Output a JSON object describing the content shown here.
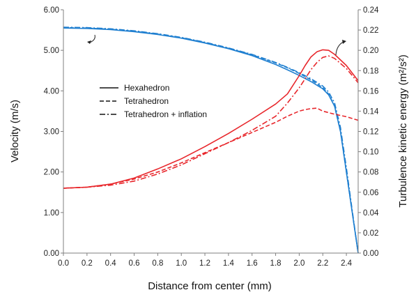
{
  "chart_data": {
    "type": "line",
    "xlabel": "Distance from center (mm)",
    "ylabel": "Velocity (m/s)",
    "y2label": "Turbulence kinetic energy (m²/s²)",
    "xlim": [
      0,
      2.5
    ],
    "ylim": [
      0,
      6
    ],
    "y2lim": [
      0,
      0.24
    ],
    "x_ticks": [
      "0.0",
      "0.2",
      "0.4",
      "0.6",
      "0.8",
      "1.0",
      "1.2",
      "1.4",
      "1.6",
      "1.8",
      "2.0",
      "2.2",
      "2.4"
    ],
    "y_ticks": [
      "0.00",
      "1.00",
      "2.00",
      "3.00",
      "4.00",
      "5.00",
      "6.00"
    ],
    "y2_ticks": [
      "0.00",
      "0.02",
      "0.04",
      "0.06",
      "0.08",
      "0.10",
      "0.12",
      "0.14",
      "0.16",
      "0.18",
      "0.20",
      "0.22",
      "0.24"
    ],
    "grid": false,
    "legend_position": "center-left",
    "legend": [
      "Hexahedron",
      "Tetrahedron",
      "Tetrahedron + inflation"
    ],
    "colors": {
      "velocity": "#1f7fd0",
      "tke": "#e8262b"
    },
    "series": [
      {
        "name": "Hexahedron",
        "quantity": "velocity",
        "axis": "left",
        "style": "solid",
        "x": [
          0,
          0.2,
          0.4,
          0.6,
          0.8,
          1.0,
          1.2,
          1.4,
          1.6,
          1.8,
          1.9,
          2.0,
          2.1,
          2.2,
          2.25,
          2.3,
          2.35,
          2.4,
          2.45,
          2.5
        ],
        "y": [
          5.55,
          5.54,
          5.51,
          5.46,
          5.39,
          5.3,
          5.18,
          5.04,
          4.87,
          4.65,
          4.52,
          4.38,
          4.23,
          4.05,
          3.9,
          3.62,
          3.0,
          2.0,
          1.0,
          0.0
        ]
      },
      {
        "name": "Tetrahedron",
        "quantity": "velocity",
        "axis": "left",
        "style": "dashed",
        "x": [
          0,
          0.2,
          0.4,
          0.6,
          0.8,
          1.0,
          1.2,
          1.4,
          1.6,
          1.8,
          1.9,
          2.0,
          2.1,
          2.2,
          2.25,
          2.3,
          2.35,
          2.4,
          2.45,
          2.5
        ],
        "y": [
          5.56,
          5.55,
          5.52,
          5.47,
          5.4,
          5.31,
          5.19,
          5.05,
          4.89,
          4.69,
          4.57,
          4.43,
          4.27,
          4.08,
          3.92,
          3.62,
          3.0,
          2.0,
          1.0,
          0.0
        ]
      },
      {
        "name": "Tetrahedron + inflation",
        "quantity": "velocity",
        "axis": "left",
        "style": "dashdot",
        "x": [
          0,
          0.2,
          0.4,
          0.6,
          0.8,
          1.0,
          1.2,
          1.4,
          1.6,
          1.8,
          1.9,
          2.0,
          2.1,
          2.2,
          2.25,
          2.3,
          2.35,
          2.4,
          2.45,
          2.5
        ],
        "y": [
          5.57,
          5.56,
          5.53,
          5.48,
          5.41,
          5.32,
          5.2,
          5.06,
          4.9,
          4.7,
          4.58,
          4.45,
          4.3,
          4.12,
          3.97,
          3.7,
          3.1,
          2.1,
          1.05,
          0.0
        ]
      },
      {
        "name": "Hexahedron",
        "quantity": "tke",
        "axis": "right",
        "style": "solid",
        "x": [
          0,
          0.2,
          0.4,
          0.6,
          0.8,
          1.0,
          1.2,
          1.4,
          1.6,
          1.8,
          1.9,
          2.0,
          2.05,
          2.1,
          2.15,
          2.2,
          2.25,
          2.3,
          2.4,
          2.5
        ],
        "y": [
          0.064,
          0.065,
          0.068,
          0.074,
          0.083,
          0.093,
          0.105,
          0.118,
          0.132,
          0.147,
          0.157,
          0.175,
          0.185,
          0.1935,
          0.1985,
          0.2005,
          0.2,
          0.196,
          0.185,
          0.17
        ]
      },
      {
        "name": "Tetrahedron",
        "quantity": "tke",
        "axis": "right",
        "style": "dashed",
        "x": [
          0,
          0.2,
          0.4,
          0.6,
          0.8,
          1.0,
          1.2,
          1.4,
          1.6,
          1.8,
          1.9,
          2.0,
          2.05,
          2.1,
          2.15,
          2.2,
          2.3,
          2.4,
          2.5
        ],
        "y": [
          0.064,
          0.065,
          0.068,
          0.073,
          0.08,
          0.089,
          0.099,
          0.109,
          0.119,
          0.129,
          0.135,
          0.14,
          0.1415,
          0.1425,
          0.143,
          0.14,
          0.137,
          0.1345,
          0.131
        ]
      },
      {
        "name": "Tetrahedron + inflation",
        "quantity": "tke",
        "axis": "right",
        "style": "dashdot",
        "x": [
          0,
          0.2,
          0.4,
          0.6,
          0.8,
          1.0,
          1.2,
          1.4,
          1.6,
          1.8,
          1.9,
          2.0,
          2.05,
          2.1,
          2.15,
          2.2,
          2.25,
          2.3,
          2.4,
          2.5
        ],
        "y": [
          0.064,
          0.065,
          0.067,
          0.071,
          0.078,
          0.087,
          0.098,
          0.109,
          0.121,
          0.135,
          0.148,
          0.163,
          0.172,
          0.181,
          0.188,
          0.193,
          0.1945,
          0.192,
          0.182,
          0.168
        ]
      }
    ]
  }
}
